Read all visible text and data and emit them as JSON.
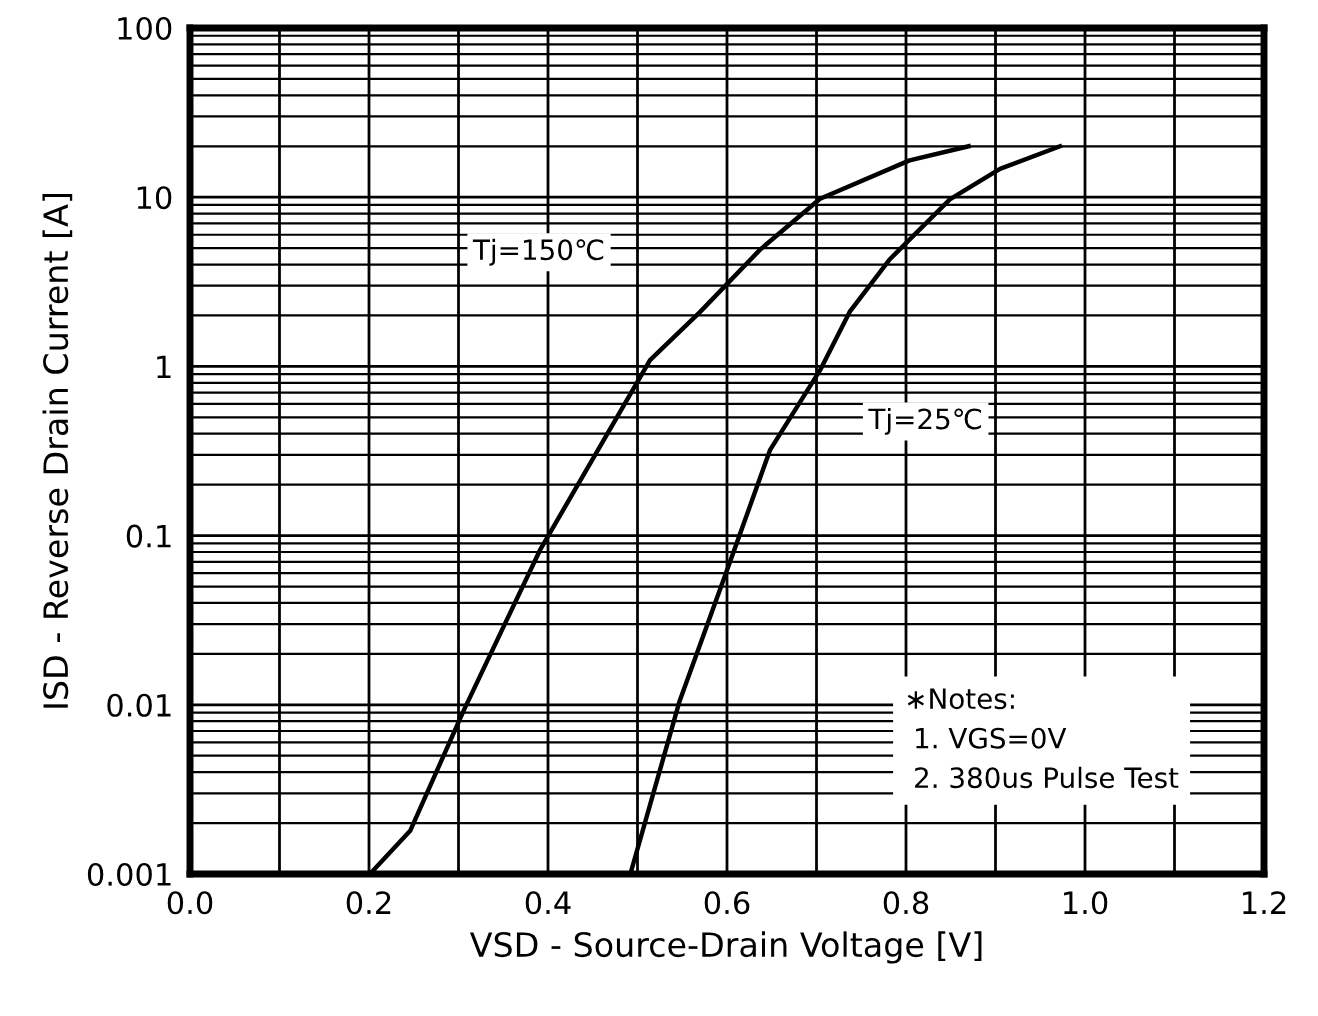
{
  "chart_data": {
    "type": "line",
    "xlabel": "VSD - Source-Drain Voltage [V]",
    "ylabel": "ISD - Reverse Drain Current [A]",
    "log": "y",
    "grid": true,
    "marker": "none",
    "line_style": "solid",
    "xlim": [
      0,
      1.2
    ],
    "ylim": [
      0.001,
      100
    ],
    "xticks": [
      {
        "value": 0,
        "label": "0.0"
      },
      {
        "value": 0.1,
        "label": null
      },
      {
        "value": 0.2,
        "label": "0.2"
      },
      {
        "value": 0.3,
        "label": null
      },
      {
        "value": 0.4,
        "label": "0.4"
      },
      {
        "value": 0.5,
        "label": null
      },
      {
        "value": 0.6,
        "label": "0.6"
      },
      {
        "value": 0.7,
        "label": null
      },
      {
        "value": 0.8,
        "label": "0.8"
      },
      {
        "value": 0.9,
        "label": null
      },
      {
        "value": 1.0,
        "label": "1.0"
      },
      {
        "value": 1.1,
        "label": null
      },
      {
        "value": 1.2,
        "label": "1.2"
      }
    ],
    "yticks": [
      0.001,
      0.01,
      0.1,
      1,
      10,
      100
    ],
    "series": [
      {
        "color": "#000000",
        "x": [
          0.201,
          0.246,
          0.306,
          0.391,
          0.514,
          0.57,
          0.637,
          0.704,
          0.804,
          0.87
        ],
        "values": [
          0.001,
          0.0018,
          0.0093,
          0.082,
          1.09,
          2.1,
          4.9,
          9.8,
          16.5,
          20
        ]
      },
      {
        "color": "#000000",
        "x": [
          0.492,
          0.547,
          0.603,
          0.648,
          0.704,
          0.737,
          0.782,
          0.849,
          0.905,
          0.972
        ],
        "values": [
          0.001,
          0.0105,
          0.069,
          0.32,
          0.95,
          2.1,
          4.3,
          9.7,
          14.7,
          20
        ]
      }
    ],
    "annotations": [
      "Tj=150℃",
      "Tj=25℃",
      "∗Notes:\n 1. VGS=0V\n 2. 380us Pulse Test"
    ]
  }
}
